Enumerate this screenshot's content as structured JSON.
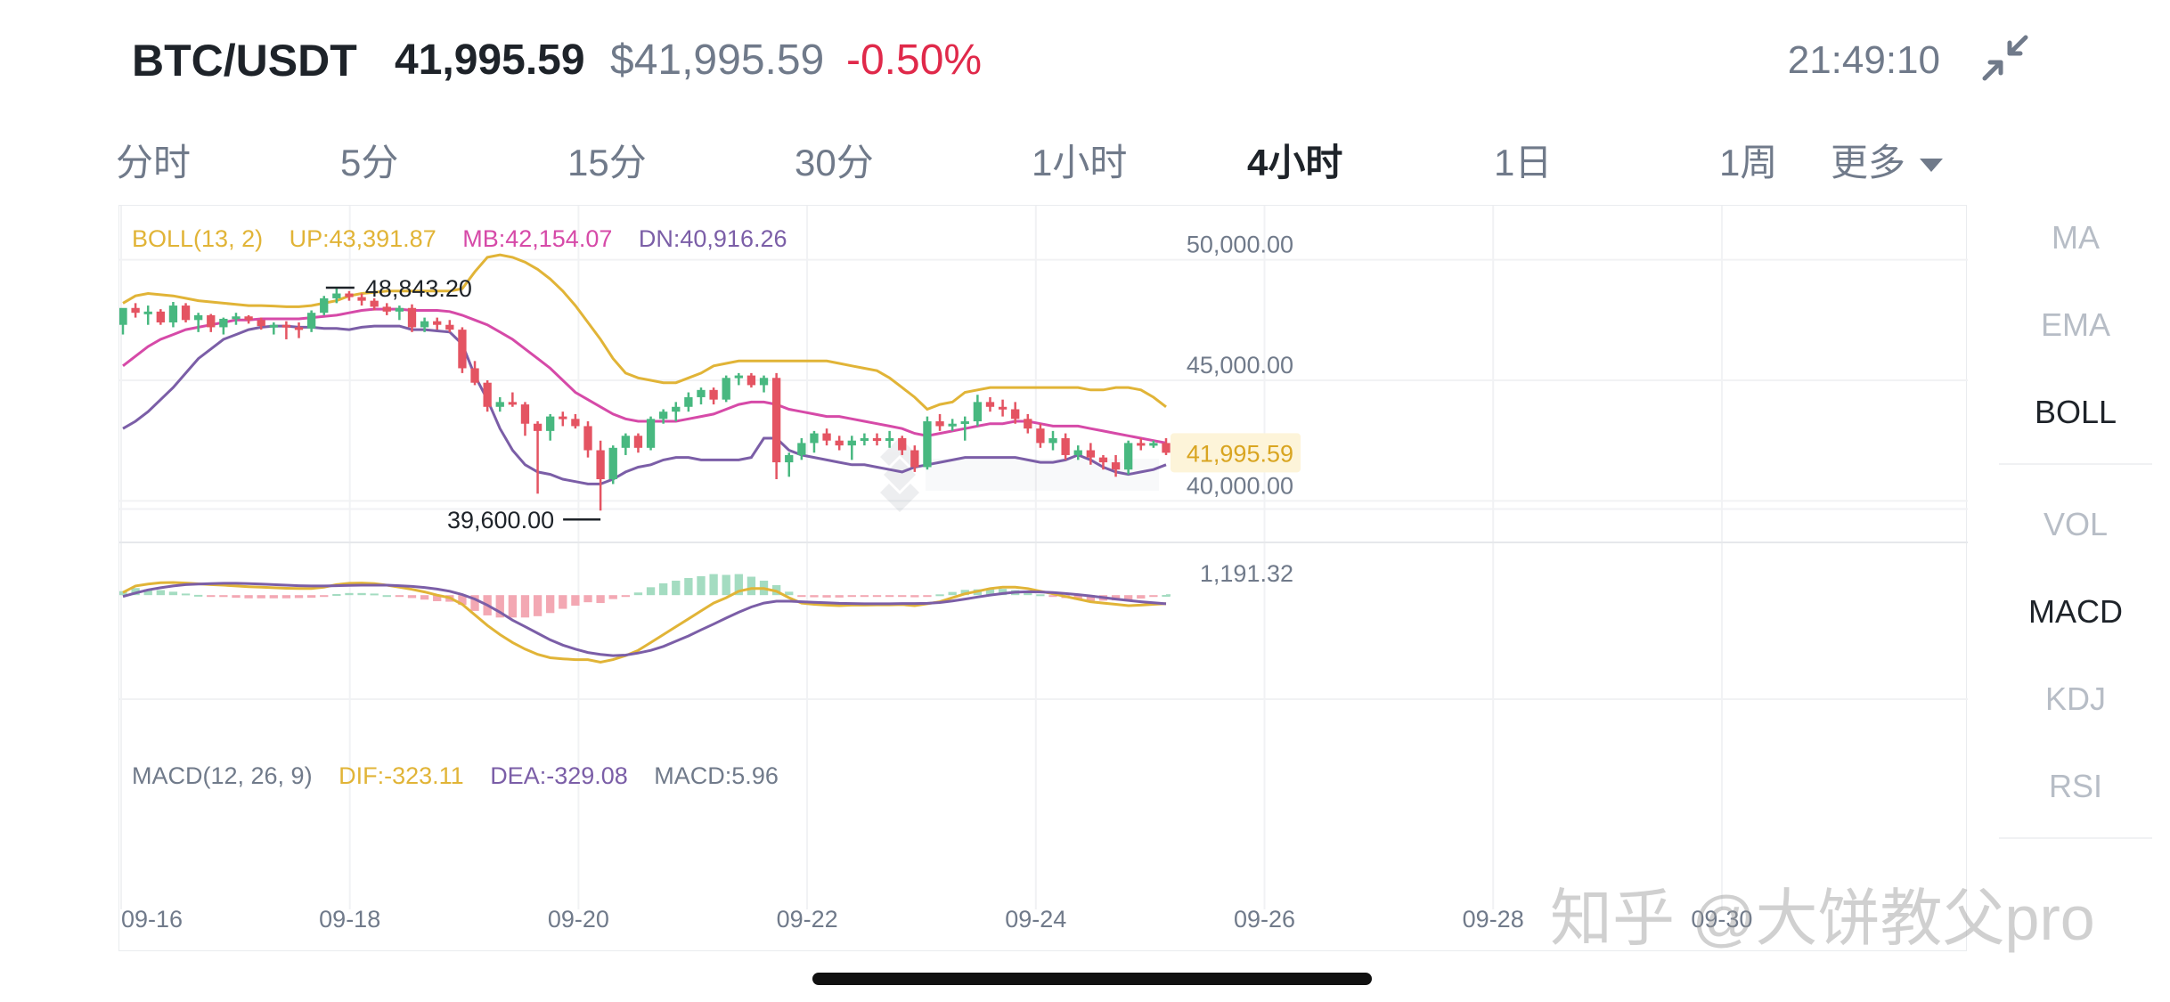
{
  "header": {
    "symbol": "BTC/USDT",
    "last_price": "41,995.59",
    "usd_price": "$41,995.59",
    "change_pct": "-0.50%",
    "clock": "21:49:10",
    "collapse_icon": "collapse-icon"
  },
  "intervals": [
    {
      "label": "分时",
      "active": false
    },
    {
      "label": "5分",
      "active": false
    },
    {
      "label": "15分",
      "active": false
    },
    {
      "label": "30分",
      "active": false
    },
    {
      "label": "1小时",
      "active": false
    },
    {
      "label": "4小时",
      "active": true
    },
    {
      "label": "1日",
      "active": false
    },
    {
      "label": "1周",
      "active": false
    },
    {
      "label": "更多",
      "active": false,
      "icon": "caret-down-icon"
    }
  ],
  "indicators": {
    "main": [
      {
        "label": "MA",
        "active": false
      },
      {
        "label": "EMA",
        "active": false
      },
      {
        "label": "BOLL",
        "active": true
      }
    ],
    "sub": [
      {
        "label": "VOL",
        "active": false
      },
      {
        "label": "MACD",
        "active": true
      },
      {
        "label": "KDJ",
        "active": false
      },
      {
        "label": "RSI",
        "active": false
      }
    ]
  },
  "colors": {
    "up": "#48b880",
    "down": "#e45462",
    "boll_up": "#e1b437",
    "boll_mb": "#d64aa8",
    "boll_dn": "#7b5ea7",
    "dif": "#e1b437",
    "dea": "#7b5ea7",
    "hist_pos": "#a4dcc1",
    "hist_neg": "#f3a8b3",
    "price_tag_bg": "#fdf4d9",
    "price_tag_text": "#d9a521"
  },
  "chart_data": [
    {
      "type": "candlestick",
      "boll_legend": {
        "name": "BOLL(13, 2)",
        "up": "UP:43,391.87",
        "mb": "MB:42,154.07",
        "dn": "DN:40,916.26"
      },
      "y_ticks": [
        "50,000.00",
        "45,000.00",
        "40,000.00"
      ],
      "y_tick_values": [
        50000,
        45000,
        40000
      ],
      "ylim": [
        38500,
        51500
      ],
      "x_ticks": [
        "09-16",
        "09-18",
        "09-20",
        "09-22",
        "09-24",
        "09-26",
        "09-28",
        "09-30"
      ],
      "current_price": "41,995.59",
      "current_price_value": 41995.59,
      "high_marker": {
        "label": "48,843.20",
        "value": 48843.2
      },
      "low_marker": {
        "label": "39,600.00",
        "value": 39600
      },
      "candles": [
        {
          "o": 47300,
          "h": 47900,
          "l": 46900,
          "c": 48000
        },
        {
          "o": 48000,
          "h": 48200,
          "l": 47600,
          "c": 47800
        },
        {
          "o": 47800,
          "h": 48100,
          "l": 47300,
          "c": 47850
        },
        {
          "o": 47850,
          "h": 47950,
          "l": 47300,
          "c": 47400
        },
        {
          "o": 47400,
          "h": 48250,
          "l": 47200,
          "c": 48100
        },
        {
          "o": 48100,
          "h": 48200,
          "l": 47400,
          "c": 47500
        },
        {
          "o": 47500,
          "h": 47800,
          "l": 47000,
          "c": 47700
        },
        {
          "o": 47700,
          "h": 47750,
          "l": 47000,
          "c": 47200
        },
        {
          "o": 47200,
          "h": 47600,
          "l": 46900,
          "c": 47550
        },
        {
          "o": 47550,
          "h": 47800,
          "l": 47300,
          "c": 47650
        },
        {
          "o": 47650,
          "h": 47700,
          "l": 47350,
          "c": 47500
        },
        {
          "o": 47500,
          "h": 47600,
          "l": 47100,
          "c": 47250
        },
        {
          "o": 47250,
          "h": 47400,
          "l": 46900,
          "c": 47300
        },
        {
          "o": 47300,
          "h": 47450,
          "l": 46700,
          "c": 47200
        },
        {
          "o": 47200,
          "h": 47400,
          "l": 46750,
          "c": 47150
        },
        {
          "o": 47150,
          "h": 47900,
          "l": 47000,
          "c": 47800
        },
        {
          "o": 47800,
          "h": 48500,
          "l": 47700,
          "c": 48400
        },
        {
          "o": 48400,
          "h": 48843,
          "l": 48200,
          "c": 48600
        },
        {
          "o": 48600,
          "h": 48700,
          "l": 48300,
          "c": 48450
        },
        {
          "o": 48450,
          "h": 48600,
          "l": 48100,
          "c": 48300
        },
        {
          "o": 48300,
          "h": 48400,
          "l": 47900,
          "c": 48050
        },
        {
          "o": 48050,
          "h": 48200,
          "l": 47700,
          "c": 47850
        },
        {
          "o": 47850,
          "h": 48100,
          "l": 47500,
          "c": 48000
        },
        {
          "o": 48000,
          "h": 48150,
          "l": 47000,
          "c": 47200
        },
        {
          "o": 47200,
          "h": 47600,
          "l": 47000,
          "c": 47450
        },
        {
          "o": 47450,
          "h": 47600,
          "l": 47100,
          "c": 47300
        },
        {
          "o": 47300,
          "h": 47500,
          "l": 47000,
          "c": 47100
        },
        {
          "o": 47100,
          "h": 47200,
          "l": 45300,
          "c": 45500
        },
        {
          "o": 45500,
          "h": 45800,
          "l": 44800,
          "c": 44900
        },
        {
          "o": 44900,
          "h": 45000,
          "l": 43700,
          "c": 43900
        },
        {
          "o": 43900,
          "h": 44300,
          "l": 43700,
          "c": 44100
        },
        {
          "o": 44100,
          "h": 44500,
          "l": 43900,
          "c": 44000
        },
        {
          "o": 44000,
          "h": 44100,
          "l": 42700,
          "c": 43200
        },
        {
          "o": 43200,
          "h": 43300,
          "l": 40300,
          "c": 42900
        },
        {
          "o": 42900,
          "h": 43600,
          "l": 42500,
          "c": 43500
        },
        {
          "o": 43500,
          "h": 43700,
          "l": 43100,
          "c": 43400
        },
        {
          "o": 43400,
          "h": 43600,
          "l": 43000,
          "c": 43100
        },
        {
          "o": 43100,
          "h": 43300,
          "l": 41800,
          "c": 42100
        },
        {
          "o": 42100,
          "h": 42500,
          "l": 39600,
          "c": 40900
        },
        {
          "o": 40900,
          "h": 42300,
          "l": 40700,
          "c": 42200
        },
        {
          "o": 42200,
          "h": 42800,
          "l": 41900,
          "c": 42700
        },
        {
          "o": 42700,
          "h": 42800,
          "l": 42000,
          "c": 42200
        },
        {
          "o": 42200,
          "h": 43500,
          "l": 42100,
          "c": 43400
        },
        {
          "o": 43400,
          "h": 43800,
          "l": 43200,
          "c": 43700
        },
        {
          "o": 43700,
          "h": 44100,
          "l": 43300,
          "c": 43900
        },
        {
          "o": 43900,
          "h": 44500,
          "l": 43700,
          "c": 44300
        },
        {
          "o": 44300,
          "h": 44700,
          "l": 44000,
          "c": 44600
        },
        {
          "o": 44600,
          "h": 44700,
          "l": 44000,
          "c": 44200
        },
        {
          "o": 44200,
          "h": 45200,
          "l": 44100,
          "c": 45100
        },
        {
          "o": 45100,
          "h": 45300,
          "l": 44800,
          "c": 45200
        },
        {
          "o": 45200,
          "h": 45300,
          "l": 44700,
          "c": 44800
        },
        {
          "o": 44800,
          "h": 45200,
          "l": 44500,
          "c": 45100
        },
        {
          "o": 45100,
          "h": 45300,
          "l": 40900,
          "c": 41600
        },
        {
          "o": 41600,
          "h": 42000,
          "l": 41000,
          "c": 41900
        },
        {
          "o": 41900,
          "h": 42600,
          "l": 41700,
          "c": 42400
        },
        {
          "o": 42400,
          "h": 42900,
          "l": 42000,
          "c": 42800
        },
        {
          "o": 42800,
          "h": 43000,
          "l": 42300,
          "c": 42500
        },
        {
          "o": 42500,
          "h": 42700,
          "l": 42100,
          "c": 42300
        },
        {
          "o": 42300,
          "h": 42700,
          "l": 41700,
          "c": 42500
        },
        {
          "o": 42500,
          "h": 42800,
          "l": 42300,
          "c": 42600
        },
        {
          "o": 42600,
          "h": 42800,
          "l": 42300,
          "c": 42500
        },
        {
          "o": 42500,
          "h": 42900,
          "l": 42200,
          "c": 42600
        },
        {
          "o": 42600,
          "h": 42700,
          "l": 41900,
          "c": 42100
        },
        {
          "o": 42100,
          "h": 42300,
          "l": 41200,
          "c": 41400
        },
        {
          "o": 41400,
          "h": 43500,
          "l": 41300,
          "c": 43300
        },
        {
          "o": 43300,
          "h": 43600,
          "l": 42900,
          "c": 43100
        },
        {
          "o": 43100,
          "h": 43400,
          "l": 42900,
          "c": 43200
        },
        {
          "o": 43200,
          "h": 43500,
          "l": 42500,
          "c": 43300
        },
        {
          "o": 43300,
          "h": 44400,
          "l": 43100,
          "c": 44100
        },
        {
          "o": 44100,
          "h": 44300,
          "l": 43700,
          "c": 43900
        },
        {
          "o": 43900,
          "h": 44200,
          "l": 43500,
          "c": 43800
        },
        {
          "o": 43800,
          "h": 44100,
          "l": 43200,
          "c": 43400
        },
        {
          "o": 43400,
          "h": 43600,
          "l": 42800,
          "c": 43000
        },
        {
          "o": 43000,
          "h": 43200,
          "l": 42200,
          "c": 42400
        },
        {
          "o": 42400,
          "h": 42900,
          "l": 42100,
          "c": 42600
        },
        {
          "o": 42600,
          "h": 42800,
          "l": 41700,
          "c": 41900
        },
        {
          "o": 41900,
          "h": 42300,
          "l": 41700,
          "c": 42100
        },
        {
          "o": 42100,
          "h": 42400,
          "l": 41500,
          "c": 41800
        },
        {
          "o": 41800,
          "h": 41900,
          "l": 41300,
          "c": 41600
        },
        {
          "o": 41600,
          "h": 41900,
          "l": 41000,
          "c": 41300
        },
        {
          "o": 41300,
          "h": 42500,
          "l": 41100,
          "c": 42400
        },
        {
          "o": 42400,
          "h": 42600,
          "l": 42100,
          "c": 42300
        },
        {
          "o": 42300,
          "h": 42500,
          "l": 42200,
          "c": 42400
        },
        {
          "o": 42400,
          "h": 42600,
          "l": 41900,
          "c": 41996
        }
      ],
      "boll_upper": [
        48200,
        48500,
        48600,
        48550,
        48500,
        48400,
        48300,
        48250,
        48200,
        48150,
        48100,
        48100,
        48080,
        48050,
        48050,
        48100,
        48200,
        48300,
        48500,
        48600,
        48650,
        48700,
        48700,
        48700,
        48700,
        48700,
        48700,
        48800,
        49500,
        50100,
        50200,
        50100,
        49900,
        49600,
        49200,
        48700,
        48100,
        47400,
        46700,
        45900,
        45300,
        45100,
        45000,
        44900,
        44900,
        45100,
        45300,
        45600,
        45700,
        45800,
        45800,
        45800,
        45800,
        45800,
        45800,
        45800,
        45800,
        45700,
        45600,
        45500,
        45400,
        45100,
        44700,
        44300,
        43800,
        44000,
        44100,
        44500,
        44600,
        44700,
        44700,
        44700,
        44700,
        44700,
        44700,
        44700,
        44700,
        44600,
        44600,
        44700,
        44700,
        44600,
        44300,
        43900
      ],
      "boll_mid": [
        45600,
        46000,
        46400,
        46700,
        46900,
        47100,
        47200,
        47300,
        47400,
        47500,
        47500,
        47550,
        47550,
        47550,
        47550,
        47600,
        47650,
        47700,
        47800,
        47900,
        47950,
        47950,
        47950,
        47900,
        47900,
        47900,
        47850,
        47700,
        47500,
        47300,
        47000,
        46700,
        46300,
        45900,
        45500,
        45000,
        44500,
        44200,
        43900,
        43600,
        43400,
        43300,
        43300,
        43300,
        43300,
        43400,
        43500,
        43600,
        43800,
        44000,
        44100,
        44100,
        44000,
        43800,
        43700,
        43600,
        43500,
        43500,
        43400,
        43300,
        43200,
        43100,
        43000,
        42800,
        42700,
        42800,
        42900,
        43000,
        43100,
        43200,
        43200,
        43300,
        43300,
        43200,
        43100,
        43100,
        43100,
        43000,
        42900,
        42800,
        42700,
        42600,
        42500,
        42400
      ],
      "boll_lower": [
        43000,
        43300,
        43700,
        44200,
        44700,
        45300,
        45900,
        46300,
        46700,
        46900,
        47100,
        47200,
        47250,
        47250,
        47200,
        47200,
        47150,
        47150,
        47100,
        47200,
        47250,
        47250,
        47250,
        47100,
        47100,
        47050,
        47000,
        46500,
        45200,
        44200,
        43000,
        42100,
        41500,
        41200,
        41100,
        40900,
        40800,
        40700,
        40700,
        40900,
        41200,
        41400,
        41500,
        41700,
        41800,
        41800,
        41700,
        41700,
        41700,
        41700,
        41800,
        42600,
        42600,
        42100,
        41900,
        41800,
        41700,
        41600,
        41500,
        41500,
        41400,
        41300,
        41200,
        41400,
        41500,
        41600,
        41700,
        41800,
        41800,
        41800,
        41800,
        41800,
        41700,
        41600,
        41600,
        41700,
        41900,
        41700,
        41400,
        41200,
        41100,
        41200,
        41300,
        41500
      ]
    },
    {
      "type": "macd",
      "legend": {
        "name": "MACD(12, 26, 9)",
        "dif": "DIF:-323.11",
        "dea": "DEA:-329.08",
        "macd": "MACD:5.96"
      },
      "y_tick": "1,191.32",
      "ylim": [
        -2600,
        1191.32
      ],
      "dif": [
        100,
        350,
        420,
        470,
        480,
        460,
        430,
        400,
        380,
        350,
        320,
        300,
        280,
        260,
        250,
        250,
        300,
        400,
        450,
        460,
        440,
        380,
        300,
        220,
        120,
        0,
        -100,
        -350,
        -750,
        -1150,
        -1500,
        -1800,
        -2050,
        -2250,
        -2380,
        -2420,
        -2450,
        -2450,
        -2550,
        -2450,
        -2300,
        -2100,
        -1800,
        -1500,
        -1200,
        -900,
        -600,
        -300,
        -100,
        150,
        250,
        250,
        150,
        -100,
        -300,
        -350,
        -380,
        -400,
        -380,
        -380,
        -370,
        -370,
        -360,
        -400,
        -330,
        -250,
        -100,
        50,
        150,
        250,
        300,
        300,
        250,
        150,
        50,
        -50,
        -150,
        -250,
        -300,
        -350,
        -400,
        -380,
        -350,
        -323
      ],
      "dea": [
        -50,
        80,
        200,
        280,
        350,
        400,
        420,
        440,
        450,
        450,
        440,
        420,
        400,
        380,
        360,
        350,
        350,
        360,
        370,
        380,
        380,
        380,
        360,
        330,
        290,
        230,
        150,
        20,
        -150,
        -380,
        -650,
        -950,
        -1200,
        -1450,
        -1700,
        -1900,
        -2050,
        -2180,
        -2250,
        -2300,
        -2280,
        -2200,
        -2100,
        -1950,
        -1750,
        -1550,
        -1320,
        -1100,
        -870,
        -650,
        -450,
        -300,
        -230,
        -230,
        -250,
        -270,
        -290,
        -310,
        -320,
        -330,
        -330,
        -330,
        -320,
        -320,
        -310,
        -280,
        -220,
        -150,
        -70,
        0,
        60,
        110,
        130,
        120,
        100,
        60,
        20,
        -30,
        -90,
        -150,
        -200,
        -250,
        -290,
        -329
      ],
      "hist": [
        150,
        270,
        220,
        190,
        130,
        60,
        10,
        -40,
        -70,
        -100,
        -120,
        -120,
        -120,
        -120,
        -110,
        -100,
        -50,
        40,
        80,
        80,
        60,
        0,
        -60,
        -110,
        -170,
        -230,
        -250,
        -370,
        -600,
        -770,
        -850,
        -850,
        -850,
        -800,
        -680,
        -520,
        -400,
        -270,
        -300,
        -150,
        -20,
        100,
        300,
        450,
        550,
        650,
        720,
        800,
        770,
        800,
        700,
        550,
        380,
        130,
        -50,
        -80,
        -90,
        -90,
        -60,
        -50,
        -40,
        -40,
        -40,
        -80,
        -20,
        30,
        120,
        200,
        220,
        250,
        240,
        190,
        120,
        30,
        -50,
        -110,
        -170,
        -220,
        -210,
        -200,
        -200,
        -130,
        -60,
        6
      ]
    }
  ],
  "watermark": "知乎 @大饼教父pro"
}
